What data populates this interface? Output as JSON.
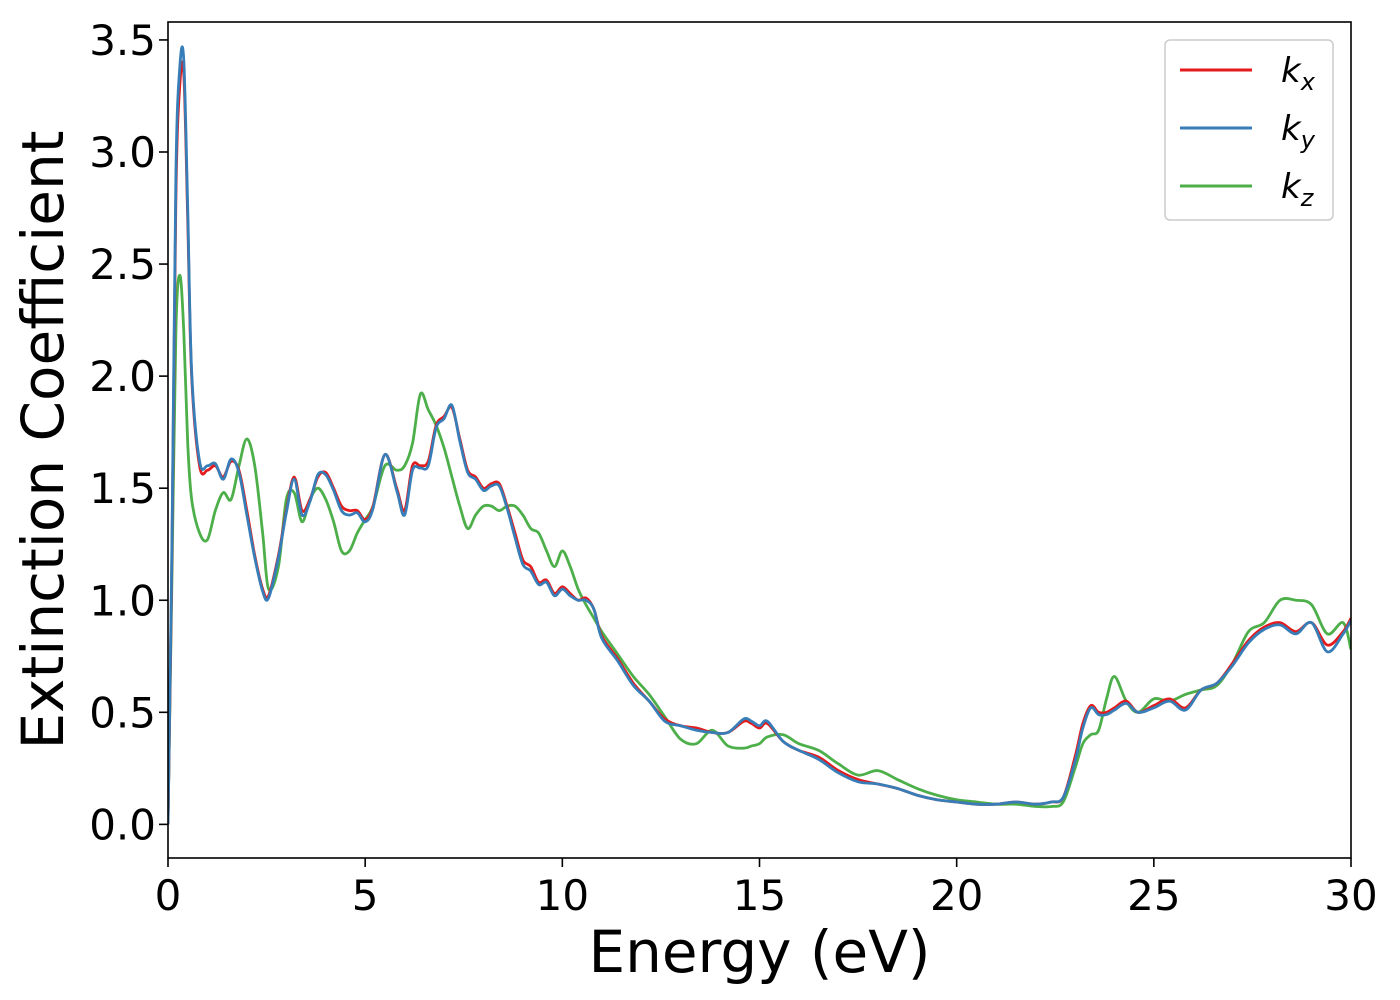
{
  "chart_data": {
    "type": "line",
    "xlabel": "Energy (eV)",
    "ylabel": "Extinction Coefficient",
    "xlim": [
      0,
      30
    ],
    "ylim": [
      -0.15,
      3.58
    ],
    "xticks": [
      0,
      5,
      10,
      15,
      20,
      25,
      30
    ],
    "xtick_labels": [
      "0",
      "5",
      "10",
      "15",
      "20",
      "25",
      "30"
    ],
    "yticks": [
      0.0,
      0.5,
      1.0,
      1.5,
      2.0,
      2.5,
      3.0,
      3.5
    ],
    "ytick_labels": [
      "0.0",
      "0.5",
      "1.0",
      "1.5",
      "2.0",
      "2.5",
      "3.0",
      "3.5"
    ],
    "grid": false,
    "legend_position": "top-right",
    "series": [
      {
        "name": "k",
        "subscript": "x",
        "color": "#e41a1c",
        "x": [
          0,
          0.1,
          0.2,
          0.3,
          0.4,
          0.5,
          0.6,
          0.8,
          1.0,
          1.2,
          1.4,
          1.6,
          1.8,
          2.0,
          2.2,
          2.4,
          2.55,
          2.8,
          3.0,
          3.2,
          3.4,
          3.6,
          3.8,
          4.0,
          4.2,
          4.4,
          4.6,
          4.8,
          5.0,
          5.2,
          5.5,
          5.8,
          6.0,
          6.2,
          6.4,
          6.6,
          6.8,
          7.0,
          7.2,
          7.4,
          7.6,
          7.8,
          8.0,
          8.2,
          8.4,
          8.6,
          8.8,
          9.0,
          9.2,
          9.4,
          9.6,
          9.8,
          10.0,
          10.2,
          10.4,
          10.6,
          10.8,
          11.0,
          11.4,
          11.8,
          12.2,
          12.6,
          13.0,
          13.4,
          13.8,
          14.2,
          14.6,
          14.8,
          15.0,
          15.2,
          15.6,
          16.0,
          16.5,
          17.0,
          17.5,
          18.0,
          18.5,
          19.0,
          19.5,
          20.0,
          20.5,
          21.0,
          21.5,
          22.0,
          22.4,
          22.7,
          23.0,
          23.2,
          23.4,
          23.6,
          23.8,
          24.0,
          24.3,
          24.6,
          25.0,
          25.4,
          25.8,
          26.2,
          26.6,
          27.0,
          27.4,
          27.8,
          28.2,
          28.6,
          29.0,
          29.4,
          29.8,
          30.0
        ],
        "values": [
          0.0,
          1.2,
          2.8,
          3.3,
          3.35,
          2.7,
          2.0,
          1.6,
          1.58,
          1.6,
          1.55,
          1.62,
          1.58,
          1.4,
          1.2,
          1.05,
          1.02,
          1.2,
          1.4,
          1.55,
          1.4,
          1.45,
          1.55,
          1.57,
          1.5,
          1.42,
          1.4,
          1.4,
          1.36,
          1.42,
          1.65,
          1.5,
          1.4,
          1.6,
          1.6,
          1.62,
          1.78,
          1.82,
          1.86,
          1.72,
          1.58,
          1.55,
          1.5,
          1.52,
          1.52,
          1.42,
          1.3,
          1.18,
          1.15,
          1.08,
          1.09,
          1.03,
          1.06,
          1.03,
          1.0,
          1.01,
          0.96,
          0.84,
          0.74,
          0.63,
          0.55,
          0.47,
          0.44,
          0.43,
          0.41,
          0.41,
          0.46,
          0.45,
          0.43,
          0.45,
          0.37,
          0.33,
          0.3,
          0.24,
          0.2,
          0.18,
          0.16,
          0.13,
          0.11,
          0.1,
          0.09,
          0.09,
          0.1,
          0.09,
          0.1,
          0.12,
          0.3,
          0.45,
          0.53,
          0.5,
          0.5,
          0.52,
          0.55,
          0.5,
          0.53,
          0.56,
          0.52,
          0.6,
          0.63,
          0.72,
          0.82,
          0.88,
          0.9,
          0.86,
          0.9,
          0.8,
          0.86,
          0.92
        ]
      },
      {
        "name": "k",
        "subscript": "y",
        "color": "#377eb8",
        "x": [
          0,
          0.1,
          0.2,
          0.3,
          0.4,
          0.5,
          0.6,
          0.8,
          1.0,
          1.2,
          1.4,
          1.6,
          1.8,
          2.0,
          2.2,
          2.4,
          2.55,
          2.8,
          3.0,
          3.2,
          3.4,
          3.6,
          3.8,
          4.0,
          4.2,
          4.4,
          4.6,
          4.8,
          5.0,
          5.2,
          5.5,
          5.8,
          6.0,
          6.2,
          6.4,
          6.6,
          6.8,
          7.0,
          7.2,
          7.4,
          7.6,
          7.8,
          8.0,
          8.2,
          8.4,
          8.6,
          8.8,
          9.0,
          9.2,
          9.4,
          9.6,
          9.8,
          10.0,
          10.2,
          10.4,
          10.6,
          10.8,
          11.0,
          11.4,
          11.8,
          12.2,
          12.6,
          13.0,
          13.4,
          13.8,
          14.2,
          14.6,
          14.8,
          15.0,
          15.2,
          15.6,
          16.0,
          16.5,
          17.0,
          17.5,
          18.0,
          18.5,
          19.0,
          19.5,
          20.0,
          20.5,
          21.0,
          21.5,
          22.0,
          22.4,
          22.7,
          23.0,
          23.2,
          23.4,
          23.6,
          23.8,
          24.0,
          24.3,
          24.6,
          25.0,
          25.4,
          25.8,
          26.2,
          26.6,
          27.0,
          27.4,
          27.8,
          28.2,
          28.6,
          29.0,
          29.4,
          29.8,
          30.0
        ],
        "values": [
          0.0,
          1.25,
          2.9,
          3.38,
          3.41,
          2.75,
          2.02,
          1.62,
          1.6,
          1.61,
          1.54,
          1.63,
          1.57,
          1.38,
          1.19,
          1.04,
          1.01,
          1.19,
          1.39,
          1.54,
          1.38,
          1.44,
          1.56,
          1.56,
          1.49,
          1.4,
          1.38,
          1.39,
          1.35,
          1.41,
          1.65,
          1.49,
          1.38,
          1.58,
          1.59,
          1.6,
          1.77,
          1.81,
          1.87,
          1.71,
          1.57,
          1.54,
          1.49,
          1.51,
          1.51,
          1.41,
          1.28,
          1.16,
          1.13,
          1.07,
          1.08,
          1.02,
          1.05,
          1.02,
          1.0,
          1.0,
          0.96,
          0.83,
          0.73,
          0.62,
          0.55,
          0.46,
          0.44,
          0.42,
          0.41,
          0.41,
          0.47,
          0.46,
          0.44,
          0.46,
          0.37,
          0.33,
          0.29,
          0.23,
          0.19,
          0.18,
          0.16,
          0.13,
          0.11,
          0.1,
          0.09,
          0.09,
          0.1,
          0.09,
          0.1,
          0.12,
          0.28,
          0.43,
          0.52,
          0.49,
          0.49,
          0.51,
          0.54,
          0.5,
          0.52,
          0.55,
          0.51,
          0.6,
          0.63,
          0.71,
          0.81,
          0.87,
          0.89,
          0.85,
          0.9,
          0.77,
          0.85,
          0.91
        ]
      },
      {
        "name": "k",
        "subscript": "z",
        "color": "#4daf4a",
        "x": [
          0,
          0.1,
          0.2,
          0.3,
          0.4,
          0.5,
          0.6,
          0.8,
          1.0,
          1.2,
          1.4,
          1.6,
          1.8,
          2.0,
          2.2,
          2.4,
          2.55,
          2.8,
          3.0,
          3.2,
          3.4,
          3.6,
          3.8,
          4.0,
          4.2,
          4.4,
          4.6,
          4.8,
          5.0,
          5.2,
          5.5,
          5.8,
          6.0,
          6.2,
          6.4,
          6.6,
          6.8,
          7.0,
          7.2,
          7.4,
          7.6,
          7.8,
          8.0,
          8.2,
          8.4,
          8.6,
          8.8,
          9.0,
          9.2,
          9.4,
          9.6,
          9.8,
          10.0,
          10.2,
          10.4,
          10.6,
          10.8,
          11.0,
          11.4,
          11.8,
          12.2,
          12.6,
          13.0,
          13.4,
          13.8,
          14.2,
          14.6,
          14.8,
          15.0,
          15.2,
          15.6,
          16.0,
          16.5,
          17.0,
          17.5,
          18.0,
          18.5,
          19.0,
          19.5,
          20.0,
          20.5,
          21.0,
          21.5,
          22.0,
          22.4,
          22.7,
          23.0,
          23.2,
          23.4,
          23.6,
          23.8,
          24.0,
          24.3,
          24.6,
          25.0,
          25.4,
          25.8,
          26.2,
          26.6,
          27.0,
          27.4,
          27.8,
          28.2,
          28.6,
          29.0,
          29.4,
          29.8,
          30.0
        ],
        "values": [
          0.0,
          1.1,
          2.2,
          2.45,
          2.2,
          1.7,
          1.45,
          1.3,
          1.27,
          1.4,
          1.48,
          1.45,
          1.6,
          1.72,
          1.6,
          1.3,
          1.05,
          1.15,
          1.45,
          1.48,
          1.35,
          1.45,
          1.5,
          1.45,
          1.35,
          1.22,
          1.22,
          1.3,
          1.36,
          1.42,
          1.6,
          1.58,
          1.6,
          1.7,
          1.92,
          1.85,
          1.78,
          1.68,
          1.55,
          1.42,
          1.32,
          1.38,
          1.42,
          1.42,
          1.4,
          1.42,
          1.42,
          1.38,
          1.32,
          1.3,
          1.22,
          1.15,
          1.22,
          1.15,
          1.05,
          0.98,
          0.92,
          0.86,
          0.76,
          0.66,
          0.58,
          0.48,
          0.38,
          0.36,
          0.42,
          0.35,
          0.34,
          0.35,
          0.36,
          0.39,
          0.4,
          0.36,
          0.33,
          0.27,
          0.22,
          0.24,
          0.2,
          0.16,
          0.13,
          0.11,
          0.1,
          0.09,
          0.09,
          0.08,
          0.08,
          0.1,
          0.25,
          0.36,
          0.4,
          0.42,
          0.56,
          0.66,
          0.55,
          0.5,
          0.56,
          0.55,
          0.58,
          0.6,
          0.62,
          0.72,
          0.86,
          0.9,
          1.0,
          1.0,
          0.98,
          0.85,
          0.9,
          0.78
        ]
      }
    ]
  }
}
